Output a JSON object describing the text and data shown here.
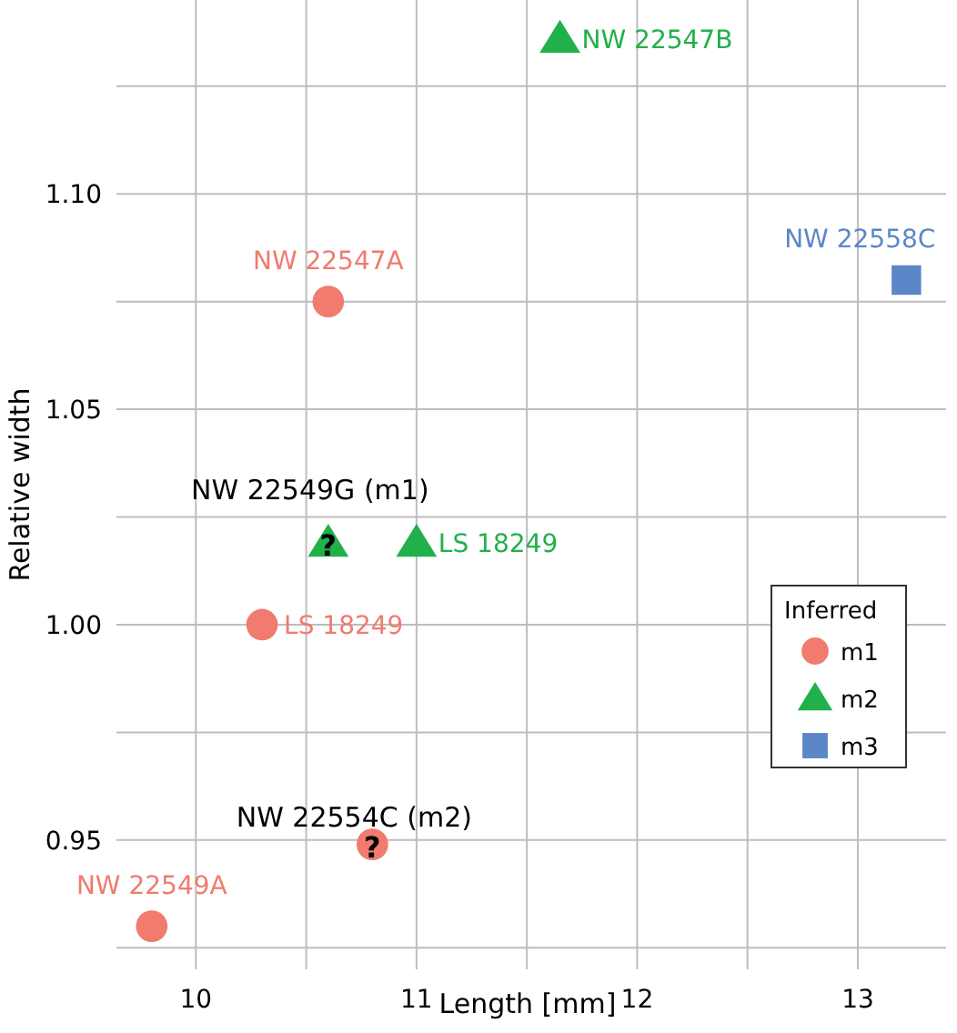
{
  "chart_data": {
    "type": "scatter",
    "xlabel": "Length [mm]",
    "ylabel": "Relative width",
    "legend_title": "Inferred",
    "legend": "right",
    "grid": true,
    "xlim": [
      9.64,
      13.4
    ],
    "xticks": [
      10,
      {
        "value": 10.5,
        "label": null
      },
      11,
      {
        "value": 11.5,
        "label": null
      },
      12,
      {
        "value": 12.5,
        "label": null
      },
      13
    ],
    "ylim": [
      0.92,
      1.145
    ],
    "yticks": [
      {
        "value": 0.925,
        "label": null
      },
      {
        "value": 0.95,
        "label": "0.95"
      },
      {
        "value": 0.975,
        "label": null
      },
      {
        "value": 1.0,
        "label": "1.00"
      },
      {
        "value": 1.025,
        "label": null
      },
      {
        "value": 1.05,
        "label": "1.05"
      },
      {
        "value": 1.075,
        "label": null
      },
      {
        "value": 1.1,
        "label": "1.10"
      },
      {
        "value": 1.125,
        "label": null
      }
    ],
    "series": [
      {
        "name": "m1",
        "color": "#f07b6e",
        "marker": "circle",
        "x": [
          10.6,
          10.3,
          9.8,
          10.8
        ],
        "values": [
          1.075,
          1.0,
          0.93,
          0.949
        ],
        "value_labels": [
          "NW 22547A",
          "LS 18249",
          "NW 22549A",
          "?"
        ]
      },
      {
        "name": "m2",
        "color": "#22b04b",
        "marker": "triangle",
        "x": [
          10.6,
          11.0,
          11.65
        ],
        "values": [
          1.019,
          1.019,
          1.136
        ],
        "value_labels": [
          "?",
          "LS 18249",
          "NW 22547B"
        ]
      },
      {
        "name": "m3",
        "color": "#5b87c8",
        "marker": "square",
        "x": [
          13.22
        ],
        "values": [
          1.08
        ],
        "value_labels": [
          "NW 22558C"
        ]
      }
    ],
    "annotations": [
      {
        "text": "NW 22549G (m1)",
        "x": 10.6,
        "y": 1.019
      },
      {
        "text": "NW 22554C (m2)",
        "x": 10.8,
        "y": 0.949
      }
    ]
  }
}
